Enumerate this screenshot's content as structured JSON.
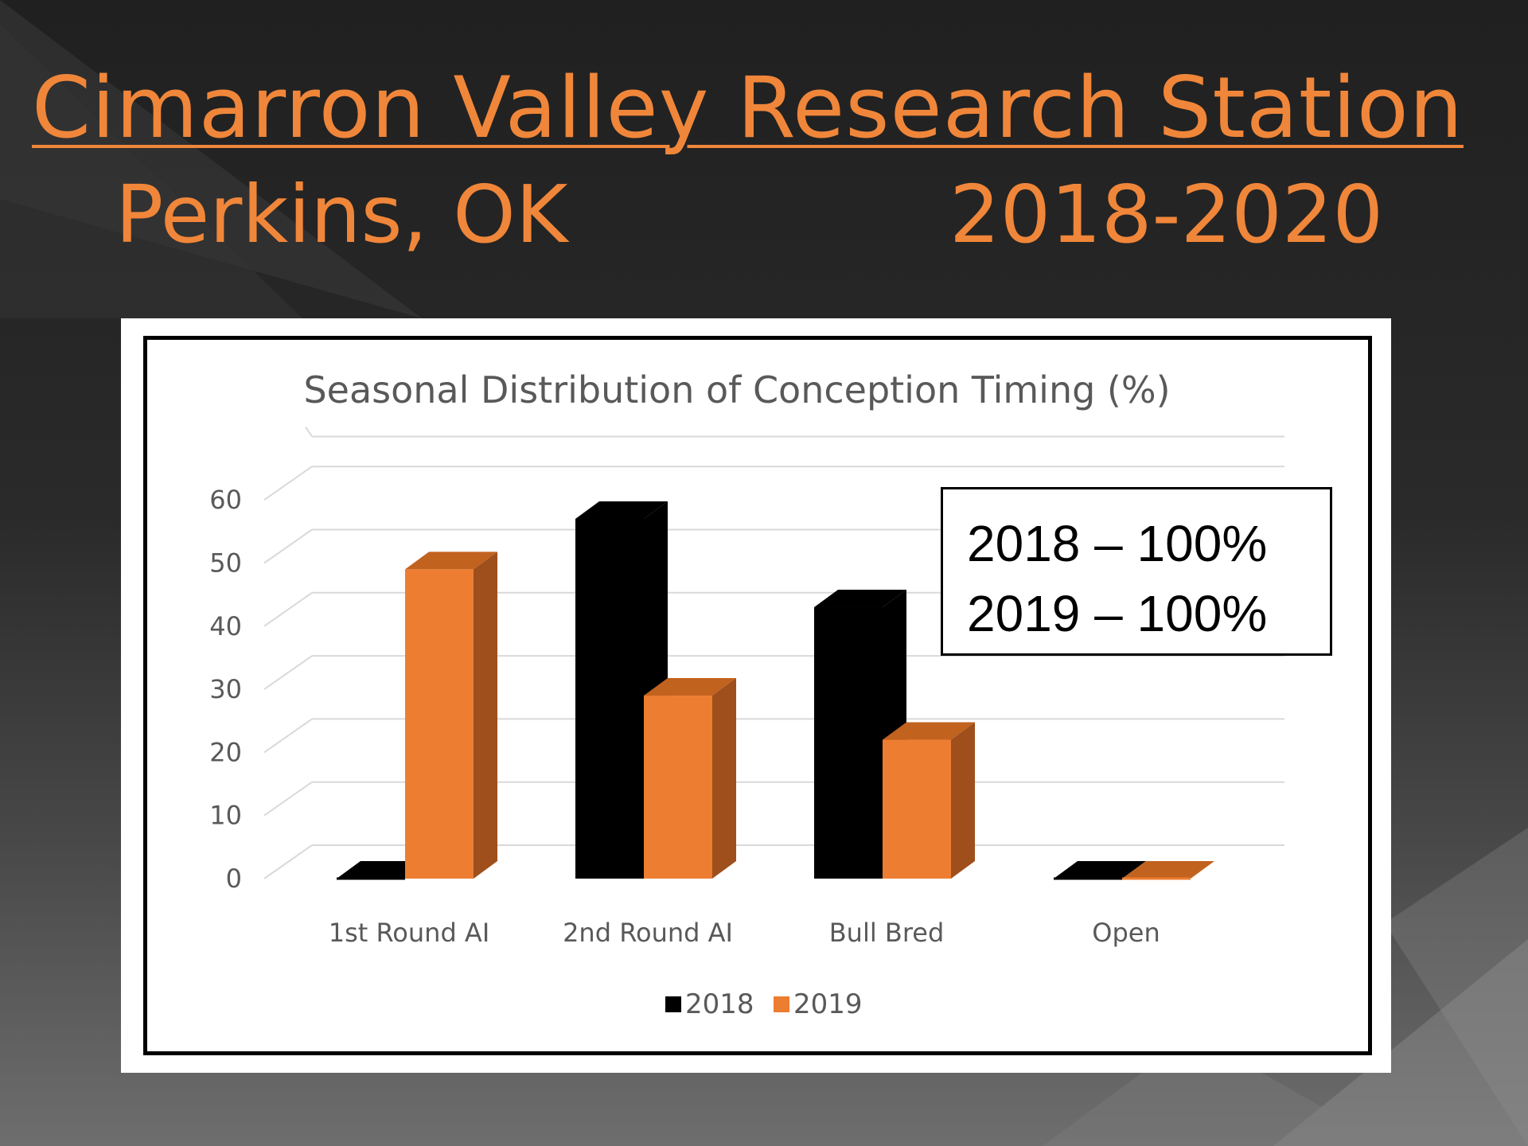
{
  "slide": {
    "title": "Cimarron Valley Research Station",
    "location": "Perkins, OK",
    "years": "2018-2020"
  },
  "note": {
    "lines": [
      "2018 – 100%",
      "2019 – 100%"
    ]
  },
  "colors": {
    "background": "#262626",
    "accent": "#f0863a",
    "series_2018": "#000000",
    "series_2019": "#ed7d31"
  },
  "chart_data": {
    "type": "bar",
    "title": "Seasonal Distribution of Conception Timing (%)",
    "categories": [
      "1st Round AI",
      "2nd Round AI",
      "Bull Bred",
      "Open"
    ],
    "series": [
      {
        "name": "2018",
        "values": [
          0,
          57,
          43,
          0
        ]
      },
      {
        "name": "2019",
        "values": [
          49,
          29,
          22,
          0
        ]
      }
    ],
    "yticks": [
      0,
      10,
      20,
      30,
      40,
      50,
      60
    ],
    "ylim": [
      0,
      65
    ],
    "xlabel": "",
    "ylabel": "",
    "grid": true,
    "legend": "bottom",
    "three_d": true
  }
}
